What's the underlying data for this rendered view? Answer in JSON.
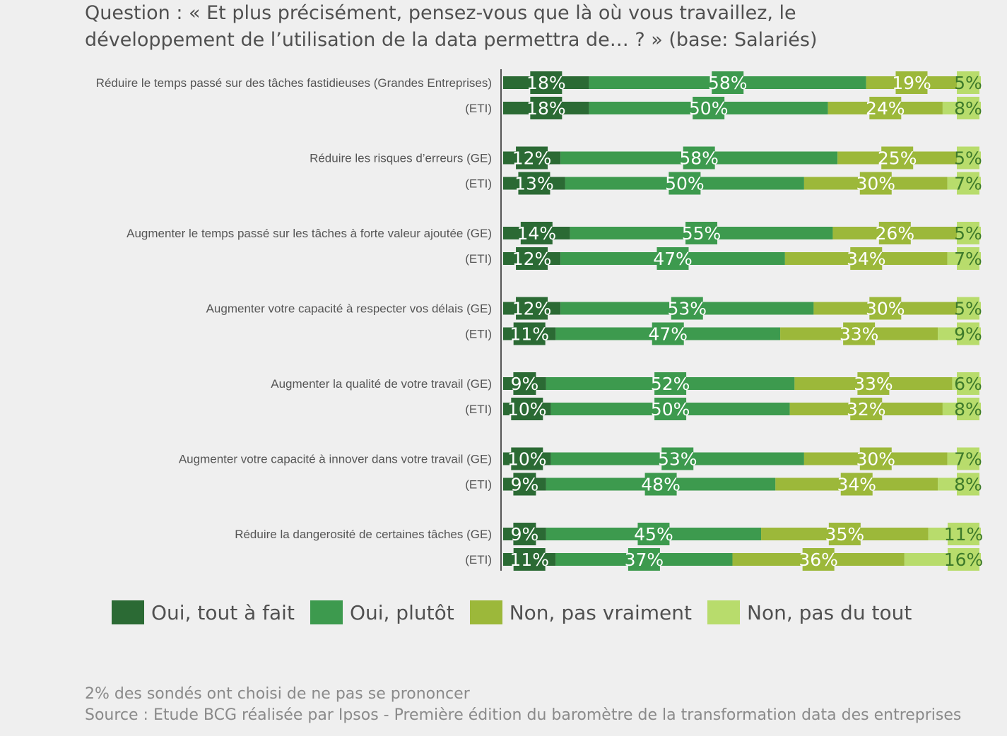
{
  "question": {
    "line1": "Question : « Et plus précisément, pensez-vous que là où vous travaillez, le",
    "line2": "développement de l’utilisation de la data permettra de… ? » (base: Salariés)"
  },
  "chart_data": {
    "type": "bar",
    "orientation": "horizontal",
    "stacked": true,
    "xlim": [
      0,
      100
    ],
    "unit": "%",
    "legend_position": "bottom",
    "categories": [
      "Réduire le temps passé sur des tâches fastidieuses (Grandes Entreprises)",
      "(ETI)",
      "Réduire les risques d’erreurs (GE)",
      "(ETI)",
      "Augmenter le temps passé sur les tâches à forte valeur ajoutée (GE)",
      "(ETI)",
      "Augmenter votre capacité à respecter vos délais (GE)",
      "(ETI)",
      "Augmenter la qualité de votre travail (GE)",
      "(ETI)",
      "Augmenter votre capacité à innover dans votre travail (GE)",
      "(ETI)",
      "Réduire la dangerosité de certaines tâches (GE)",
      "(ETI)"
    ],
    "series": [
      {
        "name": "Oui, tout à fait",
        "color": "#2b6a34",
        "values": [
          18,
          18,
          12,
          13,
          14,
          12,
          12,
          11,
          9,
          10,
          10,
          9,
          9,
          11
        ]
      },
      {
        "name": "Oui, plutôt",
        "color": "#3d9a4e",
        "values": [
          58,
          50,
          58,
          50,
          55,
          47,
          53,
          47,
          52,
          50,
          53,
          48,
          45,
          37
        ]
      },
      {
        "name": "Non, pas vraiment",
        "color": "#9cb83a",
        "values": [
          19,
          24,
          25,
          30,
          26,
          34,
          30,
          33,
          33,
          32,
          30,
          34,
          35,
          36
        ]
      },
      {
        "name": "Non, pas du tout",
        "color": "#b8dc6c",
        "values": [
          5,
          8,
          5,
          7,
          5,
          7,
          5,
          9,
          6,
          8,
          7,
          8,
          11,
          16
        ]
      }
    ]
  },
  "legend": [
    {
      "label": "Oui, tout à fait",
      "color": "#2b6a34"
    },
    {
      "label": "Oui, plutôt",
      "color": "#3d9a4e"
    },
    {
      "label": "Non, pas vraiment",
      "color": "#9cb83a"
    },
    {
      "label": "Non, pas du tout",
      "color": "#b8dc6c"
    }
  ],
  "footer": {
    "note": "2% des sondés ont choisi de ne pas se prononcer",
    "source": "Source : Etude BCG réalisée par Ipsos - Première édition du baromètre de la transformation data des entreprises"
  }
}
